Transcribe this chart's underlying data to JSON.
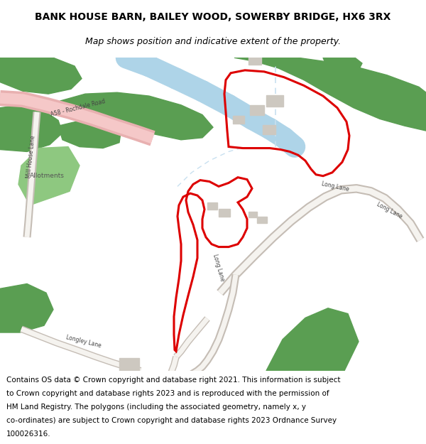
{
  "title_line1": "BANK HOUSE BARN, BAILEY WOOD, SOWERBY BRIDGE, HX6 3RX",
  "title_line2": "Map shows position and indicative extent of the property.",
  "footer_lines": [
    "Contains OS data © Crown copyright and database right 2021. This information is subject",
    "to Crown copyright and database rights 2023 and is reproduced with the permission of",
    "HM Land Registry. The polygons (including the associated geometry, namely x, y",
    "co-ordinates) are subject to Crown copyright and database rights 2023 Ordnance Survey",
    "100026316."
  ],
  "title_fontsize": 10,
  "subtitle_fontsize": 9,
  "footer_fontsize": 7.5,
  "map_bg": "#f5f3ee",
  "green_dark": "#5a9e52",
  "green_light": "#8ec880",
  "blue_color": "#aed4e8",
  "pink_outer": "#e8b0b0",
  "pink_inner": "#f5c8c8",
  "road_outer": "#c5bdb5",
  "road_inner": "#f5f3ef",
  "red_boundary": "#dd0000",
  "text_color": "#444444",
  "building_color": "#cdc8c0"
}
